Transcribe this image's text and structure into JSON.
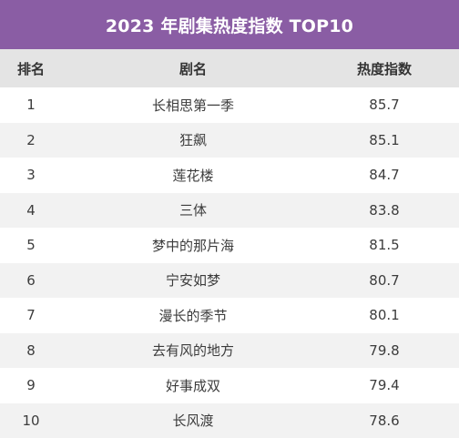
{
  "chart_data": {
    "type": "table",
    "title": "2023 年剧集热度指数 TOP10",
    "columns": [
      "排名",
      "剧名",
      "热度指数"
    ],
    "rows": [
      {
        "rank": "1",
        "name": "长相思第一季",
        "score": "85.7"
      },
      {
        "rank": "2",
        "name": "狂飙",
        "score": "85.1"
      },
      {
        "rank": "3",
        "name": "莲花楼",
        "score": "84.7"
      },
      {
        "rank": "4",
        "name": "三体",
        "score": "83.8"
      },
      {
        "rank": "5",
        "name": "梦中的那片海",
        "score": "81.5"
      },
      {
        "rank": "6",
        "name": "宁安如梦",
        "score": "80.7"
      },
      {
        "rank": "7",
        "name": "漫长的季节",
        "score": "80.1"
      },
      {
        "rank": "8",
        "name": "去有风的地方",
        "score": "79.8"
      },
      {
        "rank": "9",
        "name": "好事成双",
        "score": "79.4"
      },
      {
        "rank": "10",
        "name": "长风渡",
        "score": "78.6"
      }
    ]
  },
  "colors": {
    "header_bg": "#8a5da4",
    "column_header_bg": "#e4e4e4",
    "row_alt_bg": "#f2f2f2",
    "text": "#3c3c3c"
  }
}
